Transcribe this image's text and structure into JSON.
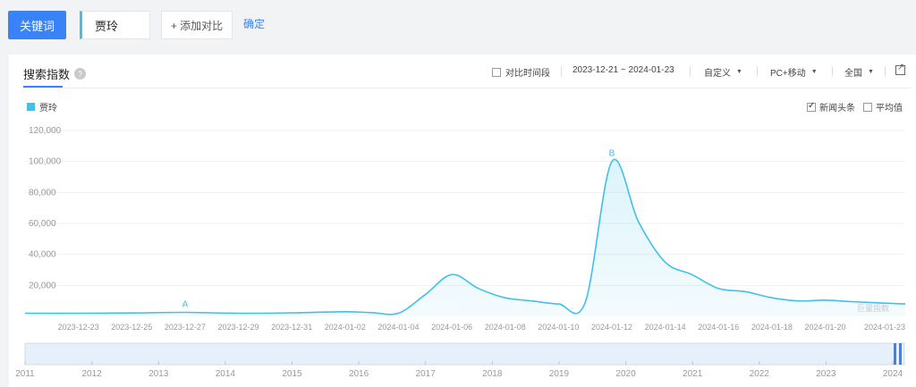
{
  "toolbar": {
    "keyword_button": "关键词",
    "keyword_value": "贾玲",
    "add_compare": "+ 添加对比",
    "confirm": "确定"
  },
  "panel": {
    "tab_title": "搜索指数",
    "help": "?",
    "compare_period": "对比时间段",
    "date_range": "2023-12-21 ~ 2024-01-23",
    "custom": "自定义",
    "device": "PC+移动",
    "region": "全国",
    "news_headline": "新闻头条",
    "average": "平均值"
  },
  "colors": {
    "accent": "#3a82f7",
    "series": "#3fc1ea"
  },
  "chart_data": {
    "type": "line",
    "series": [
      {
        "name": "贾玲",
        "values": [
          2000,
          2000,
          2200,
          2600,
          2000,
          2300,
          3000,
          2400,
          2100,
          14000,
          27000,
          18000,
          12000,
          10000,
          8000,
          9000,
          100000,
          61000,
          35000,
          27000,
          18000,
          16000,
          12000,
          10000,
          10500,
          9500,
          8000
        ]
      }
    ],
    "x": [
      "2023-12-21",
      "2023-12-23",
      "2023-12-25",
      "2023-12-27",
      "2023-12-29",
      "2023-12-31",
      "2024-01-02",
      "2024-01-03",
      "2024-01-04",
      "2024-01-05",
      "2024-01-06",
      "2024-01-07",
      "2024-01-08",
      "2024-01-09",
      "2024-01-10",
      "2024-01-11",
      "2024-01-12",
      "2024-01-13",
      "2024-01-14",
      "2024-01-15",
      "2024-01-16",
      "2024-01-17",
      "2024-01-18",
      "2024-01-19",
      "2024-01-20",
      "2024-01-21",
      "2024-01-23"
    ],
    "x_tick_labels": [
      "2023-12-23",
      "2023-12-25",
      "2023-12-27",
      "2023-12-29",
      "2023-12-31",
      "2024-01-02",
      "2024-01-04",
      "2024-01-06",
      "2024-01-08",
      "2024-01-10",
      "2024-01-12",
      "2024-01-14",
      "2024-01-16",
      "2024-01-18",
      "2024-01-20",
      "2024-01-23"
    ],
    "y_ticks": [
      "20,000",
      "40,000",
      "60,000",
      "80,000",
      "100,000",
      "120,000"
    ],
    "ylim": [
      0,
      120000
    ],
    "annotations": [
      {
        "label": "A",
        "x": "2023-12-27"
      },
      {
        "label": "B",
        "x": "2024-01-12"
      }
    ],
    "watermark": "巨量指数",
    "overview_years": [
      "2011",
      "2012",
      "2013",
      "2014",
      "2015",
      "2016",
      "2017",
      "2018",
      "2019",
      "2020",
      "2021",
      "2022",
      "2023",
      "2024"
    ],
    "grid": true,
    "legend_position": "top-left"
  }
}
